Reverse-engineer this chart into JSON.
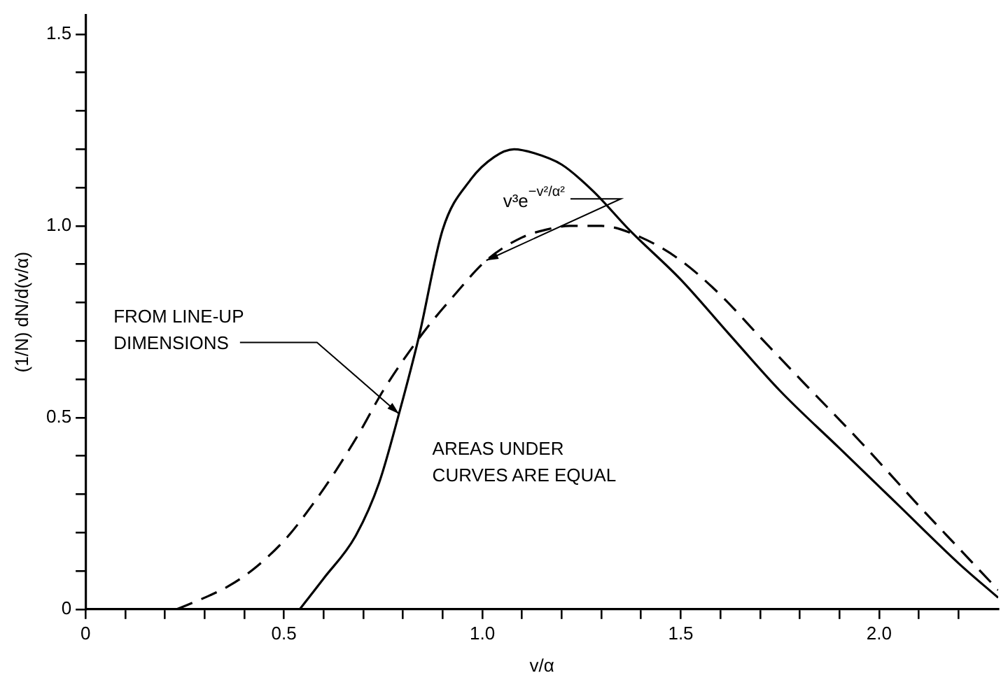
{
  "chart_data": {
    "type": "line",
    "xlabel": "v/α",
    "ylabel": "(1/N) dN/d(v/α)",
    "xlim": [
      0,
      2.3
    ],
    "ylim": [
      0,
      1.55
    ],
    "xticks": [
      0,
      {
        "value": 0.1,
        "label": null
      },
      {
        "value": 0.2,
        "label": null
      },
      {
        "value": 0.3,
        "label": null
      },
      {
        "value": 0.4,
        "label": null
      },
      0.5,
      {
        "value": 0.6,
        "label": null
      },
      {
        "value": 0.7,
        "label": null
      },
      {
        "value": 0.8,
        "label": null
      },
      {
        "value": 0.9,
        "label": null
      },
      {
        "value": 1,
        "label": "1.0"
      },
      {
        "value": 1.1,
        "label": null
      },
      {
        "value": 1.2,
        "label": null
      },
      {
        "value": 1.3,
        "label": null
      },
      {
        "value": 1.4,
        "label": null
      },
      1.5,
      {
        "value": 1.6,
        "label": null
      },
      {
        "value": 1.7,
        "label": null
      },
      {
        "value": 1.8,
        "label": null
      },
      {
        "value": 1.9,
        "label": null
      },
      {
        "value": 2,
        "label": "2.0"
      },
      {
        "value": 2.1,
        "label": null
      },
      {
        "value": 2.2,
        "label": null
      }
    ],
    "yticks": [
      0,
      {
        "value": 0.1,
        "label": null
      },
      {
        "value": 0.2,
        "label": null
      },
      {
        "value": 0.3,
        "label": null
      },
      {
        "value": 0.4,
        "label": null
      },
      0.5,
      {
        "value": 0.6,
        "label": null
      },
      {
        "value": 0.7,
        "label": null
      },
      {
        "value": 0.8,
        "label": null
      },
      {
        "value": 0.9,
        "label": null
      },
      {
        "value": 1,
        "label": "1.0"
      },
      {
        "value": 1.1,
        "label": null
      },
      {
        "value": 1.2,
        "label": null
      },
      {
        "value": 1.3,
        "label": null
      },
      {
        "value": 1.4,
        "label": null
      },
      1.5
    ],
    "grid": false,
    "legend": false,
    "marker": "none",
    "series": [
      {
        "color": "#000000",
        "line_style": "solid",
        "x": [
          0.54,
          0.6,
          0.68,
          0.74,
          0.79,
          0.84,
          0.9,
          0.97,
          1.03,
          1.08,
          1.13,
          1.2,
          1.28,
          1.37,
          1.5,
          1.62,
          1.75,
          1.9,
          2.05,
          2.2,
          2.3
        ],
        "values": [
          0,
          0.08,
          0.19,
          0.33,
          0.51,
          0.71,
          0.99,
          1.12,
          1.18,
          1.2,
          1.19,
          1.16,
          1.09,
          0.99,
          0.86,
          0.72,
          0.57,
          0.42,
          0.27,
          0.12,
          0.03
        ]
      },
      {
        "color": "#000000",
        "line_style": "dashed",
        "x": [
          0.23,
          0.3,
          0.36,
          0.43,
          0.51,
          0.57,
          0.63,
          0.69,
          0.75,
          0.85,
          0.93,
          1.01,
          1.1,
          1.16,
          1.22,
          1.3,
          1.4,
          1.5,
          1.6,
          1.7,
          1.82,
          1.95,
          2.1,
          2.2,
          2.3
        ],
        "values": [
          0,
          0.03,
          0.06,
          0.11,
          0.19,
          0.27,
          0.36,
          0.46,
          0.57,
          0.72,
          0.82,
          0.91,
          0.97,
          0.99,
          1.0,
          1.0,
          0.97,
          0.91,
          0.82,
          0.71,
          0.58,
          0.44,
          0.27,
          0.16,
          0.05
        ]
      }
    ],
    "annotations": [
      {
        "text": "v³e$^{−v²/α²}$",
        "x": 1.01,
        "y": 0.91
      },
      {
        "text": "FROM LINE-UP DIMENSIONS",
        "x": 0.79,
        "y": 0.51
      },
      "AREAS UNDER CURVES ARE EQUAL"
    ]
  }
}
